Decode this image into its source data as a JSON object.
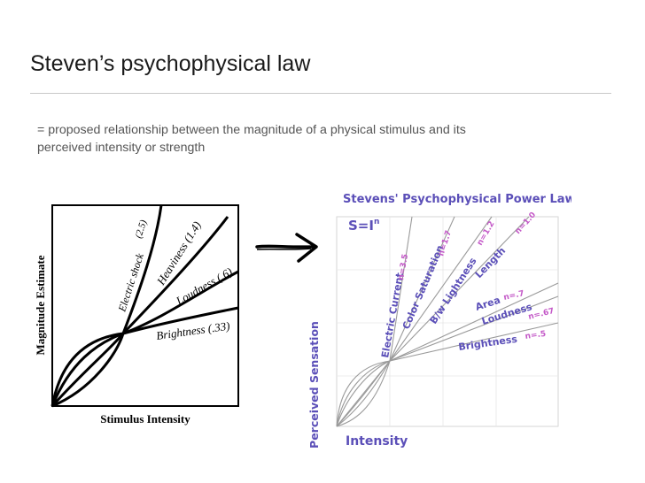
{
  "slide": {
    "title": "Steven’s psychophysical law",
    "subtitle_line1": "= proposed relationship between the magnitude of a physical stimulus and its",
    "subtitle_line2": "perceived intensity or strength"
  },
  "left_figure": {
    "y_axis_label": "Magnitude Estimate",
    "x_axis_label": "Stimulus Intensity",
    "curves": {
      "electric_shock": "Electric shock",
      "electric_shock_exp": "(2.5)",
      "heaviness": "Heaviness (1.4)",
      "loudness": "Loudness (.6)",
      "brightness": "Brightness (.33)"
    }
  },
  "right_figure": {
    "title": "Stevens' Psychophysical Power Law",
    "formula": "S=I",
    "formula_exp": "n",
    "y_axis_label": "Perceived Sensation",
    "x_axis_label": "Intensity",
    "labels": {
      "electric_current": "Electric Current",
      "n35": "n=3.5",
      "color_saturation": "Color Saturation",
      "n17": "n=1.7",
      "bw_lightness": "B/w Lightness",
      "n12": "n=1.2",
      "length": "Length",
      "n10": "n=1.0",
      "area": "Area",
      "n7": "n=.7",
      "loudness": "Loudness",
      "n67": "n=.67",
      "brightness": "Brightness",
      "n5": "n=.5"
    }
  }
}
